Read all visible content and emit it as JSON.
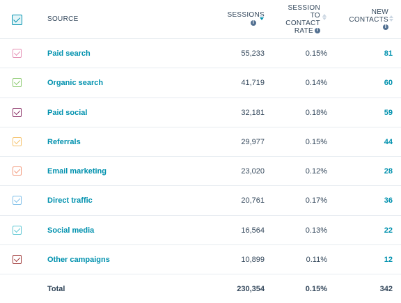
{
  "header": {
    "source": "SOURCE",
    "sessions": "SESSIONS",
    "rate_l1": "SESSION",
    "rate_l2": "TO",
    "rate_l3": "CONTACT",
    "rate_l4": "RATE",
    "contacts_l1": "NEW",
    "contacts_l2": "CONTACTS",
    "info_glyph": "i"
  },
  "rows": [
    {
      "source": "Paid search",
      "sessions": "55,233",
      "rate": "0.15%",
      "contacts": "81",
      "color": "#e58fb4"
    },
    {
      "source": "Organic search",
      "sessions": "41,719",
      "rate": "0.14%",
      "contacts": "60",
      "color": "#8bc96e"
    },
    {
      "source": "Paid social",
      "sessions": "32,181",
      "rate": "0.18%",
      "contacts": "59",
      "color": "#8a3065"
    },
    {
      "source": "Referrals",
      "sessions": "29,977",
      "rate": "0.15%",
      "contacts": "44",
      "color": "#f5c26b"
    },
    {
      "source": "Email marketing",
      "sessions": "23,020",
      "rate": "0.12%",
      "contacts": "28",
      "color": "#f2997b"
    },
    {
      "source": "Direct traffic",
      "sessions": "20,761",
      "rate": "0.17%",
      "contacts": "36",
      "color": "#7fbfe8"
    },
    {
      "source": "Social media",
      "sessions": "16,564",
      "rate": "0.13%",
      "contacts": "22",
      "color": "#5ec7d3"
    },
    {
      "source": "Other campaigns",
      "sessions": "10,899",
      "rate": "0.11%",
      "contacts": "12",
      "color": "#a03a3a"
    }
  ],
  "total": {
    "label": "Total",
    "sessions": "230,354",
    "rate": "0.15%",
    "contacts": "342"
  }
}
